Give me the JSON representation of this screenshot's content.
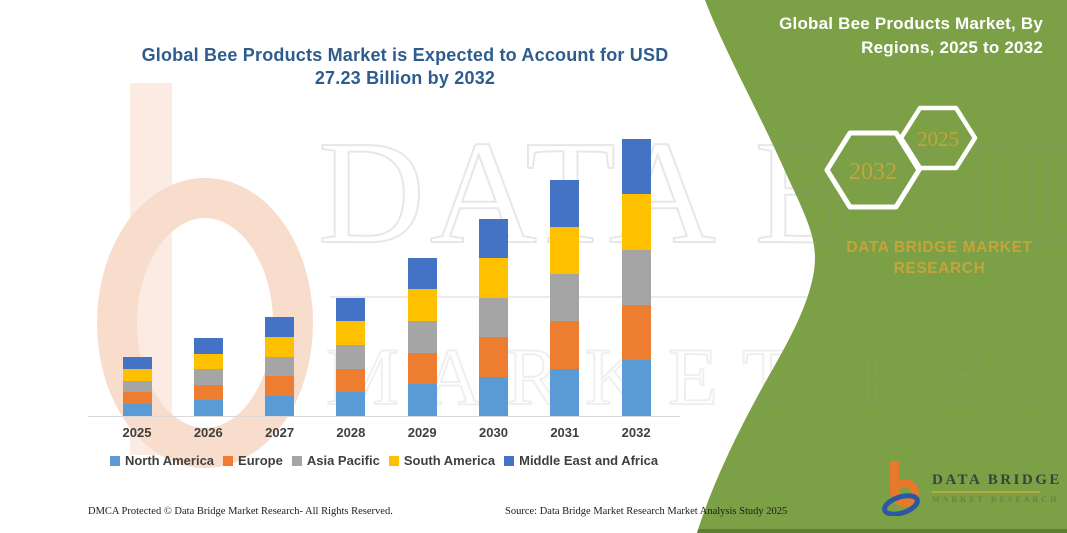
{
  "header": {
    "title_line1": "Global Bee Products Market is Expected to Account for USD",
    "title_line2": "27.23 Billion by 2032"
  },
  "side_panel": {
    "heading_line1": "Global Bee Products Market, By",
    "heading_line2": "Regions, 2025 to 2032",
    "hexagons": [
      {
        "label": "2032"
      },
      {
        "label": "2025"
      }
    ],
    "brand_caption_line1": "DATA BRIDGE MARKET",
    "brand_caption_line2": "RESEARCH",
    "colors": {
      "background_green": "#7ba045",
      "bottom_edge_green": "#5d7d35",
      "gold": "#c5a43c",
      "hex_border": "#ffffff"
    }
  },
  "watermark": {
    "line1": "DATA BRIDGE",
    "line2": "MARKET RESEARCH"
  },
  "logo": {
    "name_text": "DATA BRIDGE",
    "caption_text": "MARKET RESEARCH",
    "b_color": "#e8782a",
    "swoosh_color": "#2b57a5"
  },
  "footer": {
    "left_text": "DMCA Protected © Data Bridge Market Research- All Rights Reserved.",
    "source_text": "Source: Data Bridge Market Research  Market Analysis Study 2025"
  },
  "chart_data": {
    "type": "bar",
    "stacked": true,
    "title": "Global Bee Products Market is Expected to Account for USD 27.23 Billion by 2032",
    "unit": "USD Billion",
    "xlabel": "",
    "ylabel": "",
    "ylim": [
      0,
      28
    ],
    "grid": false,
    "legend_position": "bottom",
    "categories": [
      "2025",
      "2026",
      "2027",
      "2028",
      "2029",
      "2030",
      "2031",
      "2032"
    ],
    "totals": [
      5.8,
      7.65,
      9.7,
      11.65,
      15.55,
      19.4,
      23.25,
      27.23
    ],
    "series": [
      {
        "name": "North America",
        "color": "#5B9BD5",
        "values": [
          1.16,
          1.53,
          1.94,
          2.33,
          3.11,
          3.88,
          4.65,
          5.45
        ]
      },
      {
        "name": "Europe",
        "color": "#ED7D31",
        "values": [
          1.16,
          1.53,
          1.94,
          2.33,
          3.11,
          3.88,
          4.65,
          5.44
        ]
      },
      {
        "name": "Asia Pacific",
        "color": "#A5A5A5",
        "values": [
          1.16,
          1.53,
          1.94,
          2.33,
          3.11,
          3.88,
          4.65,
          5.45
        ]
      },
      {
        "name": "South America",
        "color": "#FFC000",
        "values": [
          1.16,
          1.53,
          1.94,
          2.33,
          3.11,
          3.88,
          4.65,
          5.44
        ]
      },
      {
        "name": "Middle East and Africa",
        "color": "#4472C4",
        "values": [
          1.16,
          1.53,
          1.94,
          2.33,
          3.11,
          3.88,
          4.65,
          5.45
        ]
      }
    ]
  }
}
